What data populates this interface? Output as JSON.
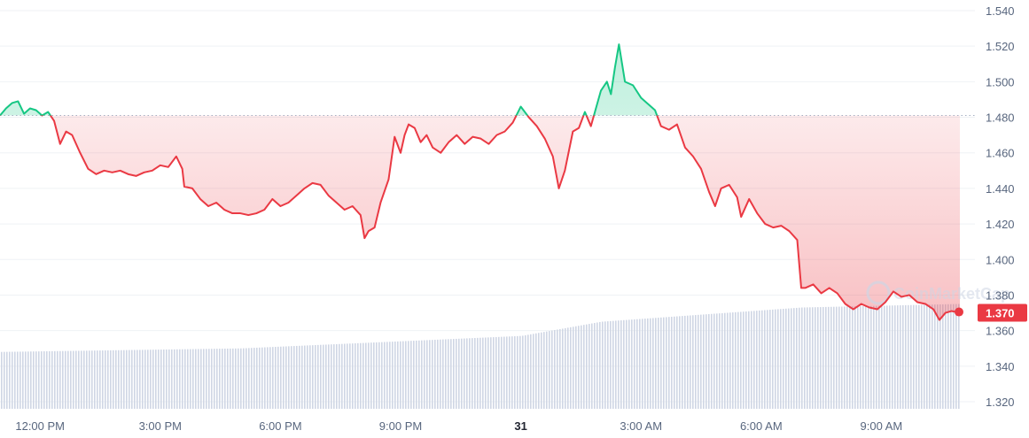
{
  "colors": {
    "up": "#16c784",
    "down": "#ea3943",
    "grid": "#eff2f5",
    "volume": "#cfd6e4",
    "tick_text": "#58667e",
    "baseline": "#a6b0c3"
  },
  "watermark": {
    "text": "CoinMarketCap",
    "icon": "coinmarketcap-logo-icon"
  },
  "chart_data": {
    "type": "line",
    "title": "",
    "xlabel": "",
    "ylabel": "",
    "ylim": [
      1.32,
      1.54
    ],
    "yticks": [
      "1.540",
      "1.520",
      "1.500",
      "1.480",
      "1.460",
      "1.440",
      "1.420",
      "1.400",
      "1.380",
      "1.360",
      "1.340",
      "1.320"
    ],
    "xticks": [
      {
        "label": "12:00 PM",
        "t": 1.0,
        "bold": false
      },
      {
        "label": "3:00 PM",
        "t": 4.0,
        "bold": false
      },
      {
        "label": "6:00 PM",
        "t": 7.0,
        "bold": false
      },
      {
        "label": "9:00 PM",
        "t": 10.0,
        "bold": false
      },
      {
        "label": "31",
        "t": 13.0,
        "bold": true
      },
      {
        "label": "3:00 AM",
        "t": 16.0,
        "bold": false
      },
      {
        "label": "6:00 AM",
        "t": 19.0,
        "bold": false
      },
      {
        "label": "9:00 AM",
        "t": 22.0,
        "bold": false
      }
    ],
    "x_unit": "hours since 11:00 AM",
    "xlim": [
      0,
      23.96
    ],
    "baseline": 1.481,
    "current_price": "1.370",
    "series": [
      {
        "name": "",
        "points": [
          [
            0.0,
            1.481
          ],
          [
            0.15,
            1.485
          ],
          [
            0.3,
            1.488
          ],
          [
            0.45,
            1.489
          ],
          [
            0.6,
            1.482
          ],
          [
            0.75,
            1.485
          ],
          [
            0.9,
            1.484
          ],
          [
            1.05,
            1.481
          ],
          [
            1.2,
            1.483
          ],
          [
            1.35,
            1.478
          ],
          [
            1.5,
            1.465
          ],
          [
            1.65,
            1.472
          ],
          [
            1.8,
            1.47
          ],
          [
            2.0,
            1.46
          ],
          [
            2.2,
            1.451
          ],
          [
            2.4,
            1.448
          ],
          [
            2.6,
            1.45
          ],
          [
            2.8,
            1.449
          ],
          [
            3.0,
            1.45
          ],
          [
            3.2,
            1.448
          ],
          [
            3.4,
            1.447
          ],
          [
            3.6,
            1.449
          ],
          [
            3.8,
            1.45
          ],
          [
            4.0,
            1.453
          ],
          [
            4.2,
            1.452
          ],
          [
            4.4,
            1.458
          ],
          [
            4.55,
            1.451
          ],
          [
            4.6,
            1.441
          ],
          [
            4.8,
            1.44
          ],
          [
            5.0,
            1.434
          ],
          [
            5.2,
            1.43
          ],
          [
            5.4,
            1.432
          ],
          [
            5.6,
            1.428
          ],
          [
            5.8,
            1.426
          ],
          [
            6.0,
            1.426
          ],
          [
            6.2,
            1.425
          ],
          [
            6.4,
            1.426
          ],
          [
            6.6,
            1.428
          ],
          [
            6.8,
            1.434
          ],
          [
            7.0,
            1.43
          ],
          [
            7.2,
            1.432
          ],
          [
            7.4,
            1.436
          ],
          [
            7.6,
            1.44
          ],
          [
            7.8,
            1.443
          ],
          [
            8.0,
            1.442
          ],
          [
            8.2,
            1.436
          ],
          [
            8.4,
            1.432
          ],
          [
            8.6,
            1.428
          ],
          [
            8.8,
            1.43
          ],
          [
            9.0,
            1.425
          ],
          [
            9.1,
            1.412
          ],
          [
            9.2,
            1.416
          ],
          [
            9.35,
            1.418
          ],
          [
            9.5,
            1.432
          ],
          [
            9.7,
            1.445
          ],
          [
            9.85,
            1.469
          ],
          [
            10.0,
            1.46
          ],
          [
            10.1,
            1.47
          ],
          [
            10.2,
            1.476
          ],
          [
            10.35,
            1.474
          ],
          [
            10.5,
            1.466
          ],
          [
            10.65,
            1.47
          ],
          [
            10.8,
            1.463
          ],
          [
            11.0,
            1.46
          ],
          [
            11.2,
            1.466
          ],
          [
            11.4,
            1.47
          ],
          [
            11.6,
            1.465
          ],
          [
            11.8,
            1.469
          ],
          [
            12.0,
            1.468
          ],
          [
            12.2,
            1.465
          ],
          [
            12.4,
            1.47
          ],
          [
            12.6,
            1.472
          ],
          [
            12.8,
            1.477
          ],
          [
            13.0,
            1.486
          ],
          [
            13.2,
            1.48
          ],
          [
            13.4,
            1.475
          ],
          [
            13.6,
            1.468
          ],
          [
            13.8,
            1.458
          ],
          [
            13.95,
            1.44
          ],
          [
            14.1,
            1.45
          ],
          [
            14.3,
            1.472
          ],
          [
            14.45,
            1.474
          ],
          [
            14.6,
            1.483
          ],
          [
            14.75,
            1.475
          ],
          [
            14.9,
            1.487
          ],
          [
            15.0,
            1.495
          ],
          [
            15.15,
            1.5
          ],
          [
            15.25,
            1.493
          ],
          [
            15.35,
            1.508
          ],
          [
            15.45,
            1.521
          ],
          [
            15.6,
            1.5
          ],
          [
            15.8,
            1.498
          ],
          [
            16.0,
            1.491
          ],
          [
            16.2,
            1.487
          ],
          [
            16.35,
            1.484
          ],
          [
            16.5,
            1.475
          ],
          [
            16.7,
            1.473
          ],
          [
            16.9,
            1.476
          ],
          [
            17.1,
            1.463
          ],
          [
            17.3,
            1.458
          ],
          [
            17.5,
            1.451
          ],
          [
            17.7,
            1.438
          ],
          [
            17.85,
            1.43
          ],
          [
            18.0,
            1.44
          ],
          [
            18.2,
            1.442
          ],
          [
            18.4,
            1.435
          ],
          [
            18.5,
            1.424
          ],
          [
            18.7,
            1.434
          ],
          [
            18.9,
            1.426
          ],
          [
            19.1,
            1.42
          ],
          [
            19.3,
            1.418
          ],
          [
            19.5,
            1.419
          ],
          [
            19.7,
            1.416
          ],
          [
            19.9,
            1.411
          ],
          [
            20.0,
            1.384
          ],
          [
            20.1,
            1.384
          ],
          [
            20.3,
            1.386
          ],
          [
            20.5,
            1.381
          ],
          [
            20.7,
            1.384
          ],
          [
            20.9,
            1.381
          ],
          [
            21.1,
            1.375
          ],
          [
            21.3,
            1.372
          ],
          [
            21.5,
            1.375
          ],
          [
            21.7,
            1.373
          ],
          [
            21.9,
            1.372
          ],
          [
            22.1,
            1.376
          ],
          [
            22.3,
            1.382
          ],
          [
            22.5,
            1.379
          ],
          [
            22.7,
            1.38
          ],
          [
            22.9,
            1.376
          ],
          [
            23.1,
            1.375
          ],
          [
            23.3,
            1.372
          ],
          [
            23.45,
            1.366
          ],
          [
            23.6,
            1.37
          ],
          [
            23.75,
            1.371
          ],
          [
            23.96,
            1.37
          ]
        ]
      }
    ],
    "volume": {
      "start": 0.028,
      "segments": [
        {
          "x1": 0.0,
          "v1": 0.028,
          "x2": 6.0,
          "v2": 0.03
        },
        {
          "x1": 6.0,
          "v1": 0.03,
          "x2": 13.0,
          "v2": 0.037
        },
        {
          "x1": 13.0,
          "v1": 0.037,
          "x2": 15.0,
          "v2": 0.045
        },
        {
          "x1": 15.0,
          "v1": 0.045,
          "x2": 20.0,
          "v2": 0.053
        },
        {
          "x1": 20.0,
          "v1": 0.053,
          "x2": 23.96,
          "v2": 0.055
        }
      ]
    }
  }
}
